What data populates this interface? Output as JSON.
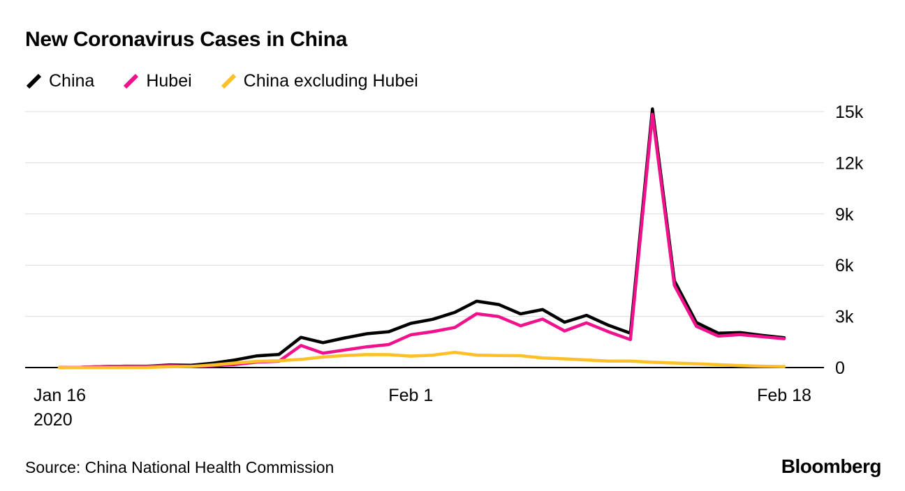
{
  "source": "Source: China National Health Commission",
  "branding": "Bloomberg",
  "chart_data": {
    "type": "line",
    "title": "New Coronavirus Cases in China",
    "xlabel": "",
    "ylabel": "",
    "grid": true,
    "legend_position": "top",
    "ylim": [
      0,
      15000
    ],
    "yticks": [
      0,
      3000,
      6000,
      9000,
      12000,
      15000
    ],
    "ytick_labels": [
      "0",
      "3k",
      "6k",
      "9k",
      "12k",
      "15k"
    ],
    "ytick_side": "right",
    "xticks": [
      {
        "index": 0,
        "label": "Jan 16",
        "sublabel": "2020",
        "anchor": "start",
        "dx": -37
      },
      {
        "index": 16,
        "label": "Feb 1",
        "anchor": "middle",
        "dx": 0
      },
      {
        "index": 33,
        "label": "Feb 18",
        "anchor": "middle",
        "dx": 0
      }
    ],
    "categories": [
      "Jan 16",
      "Jan 17",
      "Jan 18",
      "Jan 19",
      "Jan 20",
      "Jan 21",
      "Jan 22",
      "Jan 23",
      "Jan 24",
      "Jan 25",
      "Jan 26",
      "Jan 27",
      "Jan 28",
      "Jan 29",
      "Jan 30",
      "Jan 31",
      "Feb 1",
      "Feb 2",
      "Feb 3",
      "Feb 4",
      "Feb 5",
      "Feb 6",
      "Feb 7",
      "Feb 8",
      "Feb 9",
      "Feb 10",
      "Feb 11",
      "Feb 12",
      "Feb 13",
      "Feb 14",
      "Feb 15",
      "Feb 16",
      "Feb 17",
      "Feb 18"
    ],
    "series": [
      {
        "name": "China",
        "color": "#000000",
        "values": [
          4,
          17,
          59,
          77,
          77,
          149,
          131,
          259,
          444,
          688,
          769,
          1771,
          1459,
          1737,
          1982,
          2102,
          2590,
          2829,
          3235,
          3887,
          3694,
          3143,
          3399,
          2656,
          3062,
          2478,
          2015,
          15152,
          5090,
          2641,
          2009,
          2048,
          1886,
          1749
        ]
      },
      {
        "name": "Hubei",
        "color": "#f0128c",
        "values": [
          4,
          17,
          59,
          77,
          72,
          105,
          69,
          105,
          180,
          323,
          371,
          1291,
          840,
          1032,
          1220,
          1347,
          1921,
          2103,
          2345,
          3156,
          2987,
          2447,
          2841,
          2147,
          2618,
          2097,
          1638,
          14840,
          4823,
          2420,
          1843,
          1933,
          1807,
          1693
        ]
      },
      {
        "name": "China excluding Hubei",
        "color": "#fdc029",
        "values": [
          0,
          0,
          0,
          0,
          5,
          44,
          62,
          154,
          264,
          365,
          398,
          480,
          619,
          705,
          762,
          755,
          669,
          726,
          890,
          731,
          707,
          696,
          558,
          509,
          444,
          381,
          377,
          312,
          267,
          221,
          166,
          115,
          79,
          56
        ]
      }
    ],
    "colors": {
      "grid": "#dcdcdc",
      "axis": "#000000",
      "text": "#000000"
    }
  }
}
